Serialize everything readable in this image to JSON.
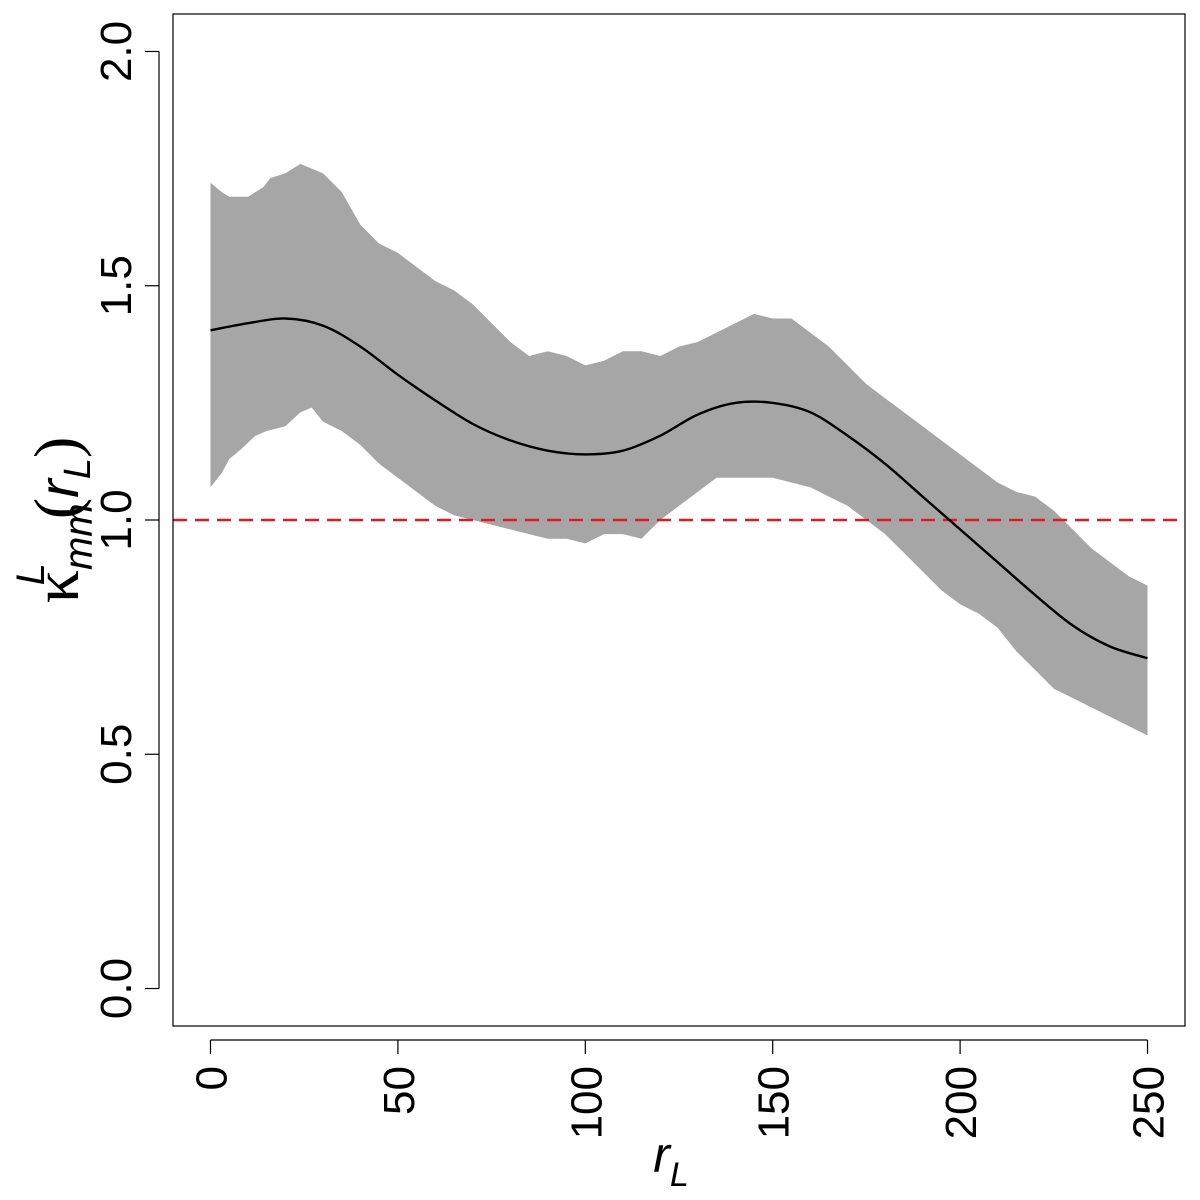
{
  "chart_data": {
    "type": "line",
    "xlabel": "r_L",
    "ylabel": {
      "kappa": "κ",
      "superscript": "L",
      "subscript": "mm",
      "open_paren": "(",
      "arg": "r",
      "arg_subscript": "L",
      "close_paren": ")"
    },
    "xlim": [
      -10,
      260
    ],
    "ylim": [
      -0.08,
      2.08
    ],
    "xticks": [
      0,
      50,
      100,
      150,
      200,
      250
    ],
    "xtick_labels": [
      "0",
      "50",
      "100",
      "150",
      "200",
      "250"
    ],
    "yticks": [
      0.0,
      0.5,
      1.0,
      1.5,
      2.0
    ],
    "ytick_labels": [
      "0.0",
      "0.5",
      "1.0",
      "1.5",
      "2.0"
    ],
    "grid": false,
    "reference_line": {
      "y": 1.0,
      "color": "#e31a1c",
      "style": "dashed"
    },
    "band_color": "#a6a6a6",
    "line_color": "#000000",
    "series": [
      {
        "kind": "line",
        "x": [
          0,
          10,
          20,
          30,
          40,
          50,
          60,
          70,
          80,
          90,
          100,
          110,
          120,
          130,
          140,
          150,
          160,
          170,
          180,
          190,
          200,
          210,
          220,
          230,
          240,
          250
        ],
        "y": [
          1.405,
          1.42,
          1.43,
          1.415,
          1.37,
          1.31,
          1.255,
          1.205,
          1.17,
          1.148,
          1.14,
          1.148,
          1.18,
          1.225,
          1.25,
          1.25,
          1.23,
          1.18,
          1.12,
          1.05,
          0.98,
          0.91,
          0.84,
          0.775,
          0.73,
          0.705
        ]
      },
      {
        "kind": "band_upper",
        "x": [
          0,
          3,
          5,
          10,
          14,
          16,
          20,
          24,
          27,
          30,
          35,
          40,
          45,
          50,
          55,
          60,
          65,
          70,
          75,
          80,
          85,
          90,
          95,
          100,
          105,
          110,
          115,
          120,
          125,
          130,
          135,
          140,
          145,
          150,
          155,
          160,
          165,
          170,
          175,
          180,
          185,
          190,
          195,
          200,
          205,
          210,
          215,
          220,
          225,
          230,
          235,
          240,
          245,
          250
        ],
        "y": [
          1.72,
          1.7,
          1.69,
          1.69,
          1.71,
          1.73,
          1.74,
          1.76,
          1.75,
          1.74,
          1.7,
          1.63,
          1.59,
          1.57,
          1.54,
          1.51,
          1.49,
          1.46,
          1.42,
          1.38,
          1.35,
          1.36,
          1.35,
          1.33,
          1.34,
          1.36,
          1.36,
          1.35,
          1.37,
          1.38,
          1.4,
          1.42,
          1.44,
          1.43,
          1.43,
          1.4,
          1.37,
          1.33,
          1.29,
          1.26,
          1.23,
          1.2,
          1.17,
          1.14,
          1.11,
          1.08,
          1.06,
          1.05,
          1.02,
          0.98,
          0.94,
          0.91,
          0.88,
          0.86
        ]
      },
      {
        "kind": "band_lower",
        "x": [
          0,
          3,
          5,
          8,
          12,
          15,
          20,
          24,
          27,
          30,
          35,
          40,
          45,
          50,
          55,
          60,
          65,
          70,
          75,
          80,
          85,
          90,
          95,
          100,
          105,
          110,
          115,
          120,
          125,
          130,
          135,
          140,
          145,
          150,
          155,
          160,
          165,
          170,
          175,
          180,
          185,
          190,
          195,
          200,
          205,
          210,
          215,
          220,
          225,
          230,
          235,
          240,
          245,
          250
        ],
        "y": [
          1.07,
          1.1,
          1.13,
          1.15,
          1.18,
          1.19,
          1.2,
          1.23,
          1.24,
          1.21,
          1.19,
          1.16,
          1.12,
          1.09,
          1.06,
          1.03,
          1.01,
          1.0,
          0.99,
          0.98,
          0.97,
          0.96,
          0.96,
          0.95,
          0.97,
          0.97,
          0.96,
          1.0,
          1.03,
          1.06,
          1.09,
          1.09,
          1.09,
          1.09,
          1.08,
          1.07,
          1.05,
          1.03,
          1.0,
          0.97,
          0.93,
          0.89,
          0.85,
          0.82,
          0.8,
          0.77,
          0.72,
          0.68,
          0.64,
          0.62,
          0.6,
          0.58,
          0.56,
          0.54
        ]
      }
    ]
  }
}
